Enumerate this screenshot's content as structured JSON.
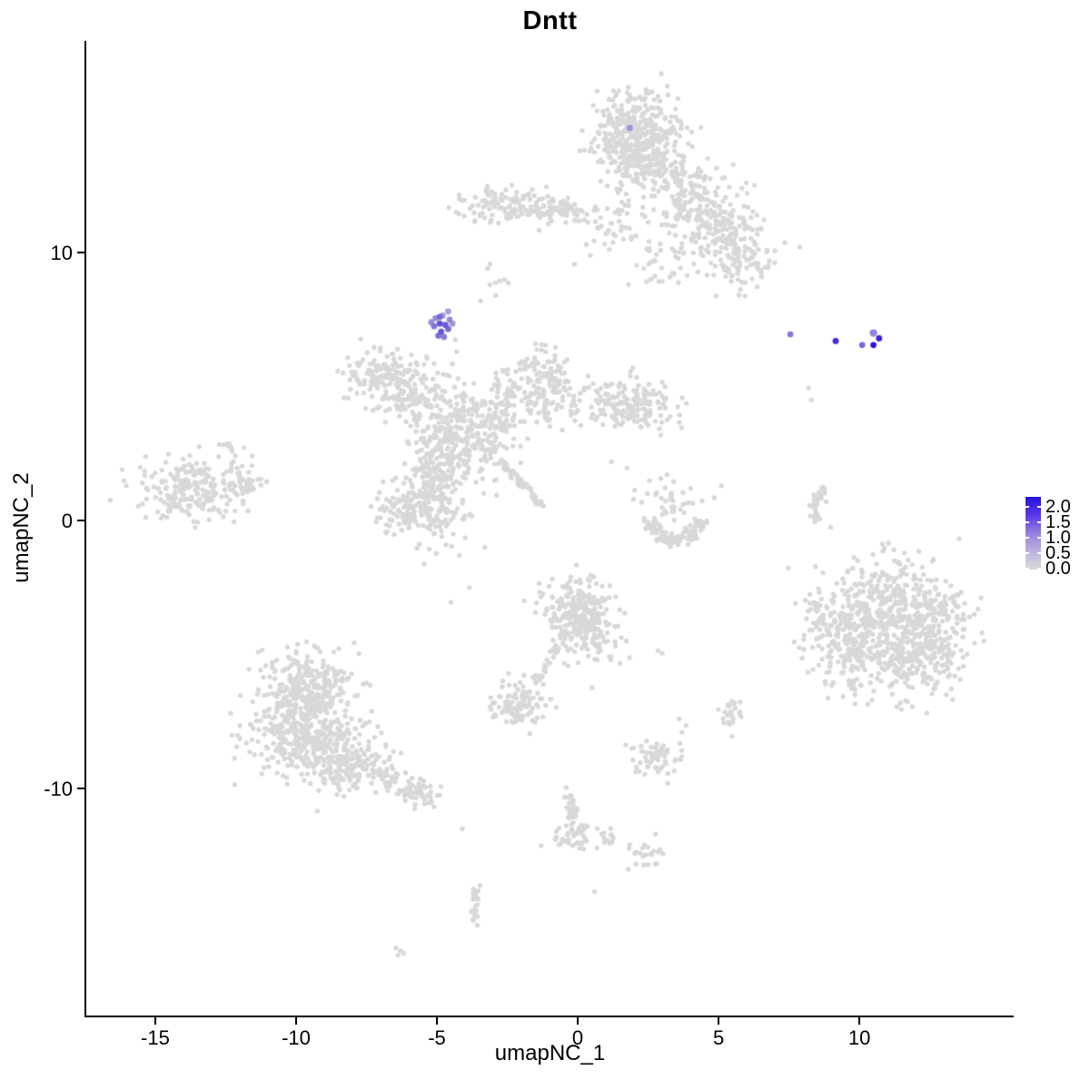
{
  "chart_data": {
    "type": "scatter",
    "title": "Dntt",
    "xlabel": "umapNC_1",
    "ylabel": "umapNC_2",
    "grid": false,
    "xlim": [
      -17.45,
      15.48
    ],
    "ylim": [
      -18.47,
      17.9
    ],
    "x_ticks": {
      "values": [
        -15,
        -10,
        -5,
        0,
        5,
        10
      ],
      "labels": [
        "-15",
        "-10",
        "-5",
        "0",
        "5",
        "10"
      ]
    },
    "y_ticks": {
      "values": [
        10,
        0,
        -10
      ],
      "labels": [
        "10",
        "0",
        "-10"
      ]
    },
    "point_color_grey": "#d8d8d8",
    "point_radius": 2.7,
    "expression_point_radius": 3.4,
    "rng_seed": 42,
    "color_scale": {
      "low_value": 0.0,
      "high_value": 2.0,
      "low_color": "#d3d3d3",
      "high_color": "#2a14dd",
      "legend_labels_top_to_bottom": [
        "2.0",
        "1.5",
        "1.0",
        "0.5",
        "0.0"
      ],
      "gradient_stops_bottom_to_top": [
        "#d9d9d9",
        "#bdb3de",
        "#9480de",
        "#5b38e6",
        "#2411e0"
      ]
    },
    "background_clusters": [
      {
        "type": "gauss",
        "cx": 2.0,
        "cy": 14.6,
        "sx": 0.85,
        "sy": 0.72,
        "n": 300
      },
      {
        "type": "gauss",
        "cx": 2.35,
        "cy": 13.3,
        "sx": 0.72,
        "sy": 0.55,
        "n": 170
      },
      {
        "type": "gauss",
        "cx": 3.9,
        "cy": 12.2,
        "sx": 0.6,
        "sy": 0.65,
        "n": 110
      },
      {
        "type": "gauss",
        "cx": 5.0,
        "cy": 10.9,
        "sx": 0.85,
        "sy": 0.8,
        "n": 170
      },
      {
        "type": "gauss",
        "cx": 5.9,
        "cy": 9.6,
        "sx": 0.55,
        "sy": 0.5,
        "n": 70
      },
      {
        "type": "gauss",
        "cx": -2.3,
        "cy": 11.75,
        "sx": 0.95,
        "sy": 0.33,
        "n": 130
      },
      {
        "type": "gauss",
        "cx": -0.55,
        "cy": 11.55,
        "sx": 0.85,
        "sy": 0.28,
        "n": 55
      },
      {
        "type": "gauss",
        "cx": 1.3,
        "cy": 11.0,
        "sx": 0.9,
        "sy": 0.6,
        "n": 45
      },
      {
        "type": "gauss",
        "cx": 2.9,
        "cy": 9.8,
        "sx": 0.6,
        "sy": 0.55,
        "n": 30
      },
      {
        "type": "gauss",
        "cx": -2.9,
        "cy": 8.7,
        "sx": 0.2,
        "sy": 0.35,
        "n": 7
      },
      {
        "type": "gauss",
        "cx": -6.85,
        "cy": 5.35,
        "sx": 0.75,
        "sy": 0.5,
        "n": 150
      },
      {
        "type": "gauss",
        "cx": -5.65,
        "cy": 4.6,
        "sx": 0.6,
        "sy": 0.42,
        "n": 90
      },
      {
        "type": "gauss",
        "cx": -1.25,
        "cy": 5.6,
        "sx": 0.5,
        "sy": 0.5,
        "n": 85
      },
      {
        "type": "gauss",
        "cx": -1.0,
        "cy": 4.45,
        "sx": 0.5,
        "sy": 0.45,
        "n": 75
      },
      {
        "type": "gauss",
        "cx": -2.5,
        "cy": 4.9,
        "sx": 0.42,
        "sy": 0.5,
        "n": 40
      },
      {
        "type": "gauss",
        "cx": 1.45,
        "cy": 4.45,
        "sx": 0.7,
        "sy": 0.45,
        "n": 110
      },
      {
        "type": "gauss",
        "cx": 2.55,
        "cy": 4.2,
        "sx": 0.5,
        "sy": 0.4,
        "n": 65
      },
      {
        "type": "gauss",
        "cx": -4.3,
        "cy": 3.1,
        "sx": 0.8,
        "sy": 0.7,
        "n": 260
      },
      {
        "type": "gauss",
        "cx": -3.0,
        "cy": 3.7,
        "sx": 0.5,
        "sy": 0.5,
        "n": 70
      },
      {
        "type": "gauss",
        "cx": -4.85,
        "cy": 1.8,
        "sx": 0.45,
        "sy": 0.45,
        "n": 70
      },
      {
        "type": "gauss",
        "cx": -5.6,
        "cy": 0.55,
        "sx": 0.8,
        "sy": 0.68,
        "n": 230
      },
      {
        "type": "line",
        "x1": -2.7,
        "y1": 2.2,
        "x2": -1.25,
        "y2": 0.55,
        "w": 0.07,
        "n": 55
      },
      {
        "type": "gauss",
        "cx": -13.75,
        "cy": 1.1,
        "sx": 0.92,
        "sy": 0.55,
        "n": 210
      },
      {
        "type": "line",
        "x1": -12.7,
        "y1": 1.25,
        "x2": -11.3,
        "y2": 1.4,
        "w": 0.22,
        "n": 45
      },
      {
        "type": "gauss",
        "cx": -12.3,
        "cy": 2.45,
        "sx": 0.3,
        "sy": 0.28,
        "n": 14
      },
      {
        "type": "arc",
        "cx": 3.45,
        "cy": 0.2,
        "r": 0.95,
        "a1": 190,
        "a2": 350,
        "w": 0.16,
        "n": 85
      },
      {
        "type": "gauss",
        "cx": 3.1,
        "cy": 0.75,
        "sx": 0.55,
        "sy": 0.5,
        "n": 42
      },
      {
        "type": "arc",
        "cx": 9.15,
        "cy": 0.45,
        "r": 0.78,
        "a1": 115,
        "a2": 222,
        "w": 0.07,
        "n": 36
      },
      {
        "type": "gauss",
        "cx": 10.95,
        "cy": -3.1,
        "sx": 1.05,
        "sy": 0.85,
        "n": 320
      },
      {
        "type": "gauss",
        "cx": 11.9,
        "cy": -4.9,
        "sx": 1.05,
        "sy": 0.85,
        "n": 320
      },
      {
        "type": "gauss",
        "cx": 9.7,
        "cy": -4.7,
        "sx": 0.7,
        "sy": 0.8,
        "n": 150
      },
      {
        "type": "gauss",
        "cx": 8.6,
        "cy": -3.6,
        "sx": 0.4,
        "sy": 0.55,
        "n": 45
      },
      {
        "type": "gauss",
        "cx": 12.9,
        "cy": -3.4,
        "sx": 0.5,
        "sy": 0.5,
        "n": 60
      },
      {
        "type": "gauss",
        "cx": 0.0,
        "cy": -3.3,
        "sx": 0.62,
        "sy": 0.6,
        "n": 200
      },
      {
        "type": "gauss",
        "cx": 0.45,
        "cy": -4.4,
        "sx": 0.5,
        "sy": 0.5,
        "n": 90
      },
      {
        "type": "line",
        "x1": -0.75,
        "y1": -4.6,
        "x2": -1.4,
        "y2": -6.0,
        "w": 0.09,
        "n": 26
      },
      {
        "type": "gauss",
        "cx": -2.05,
        "cy": -6.8,
        "sx": 0.52,
        "sy": 0.4,
        "n": 105
      },
      {
        "type": "gauss",
        "cx": -9.4,
        "cy": -6.3,
        "sx": 0.8,
        "sy": 0.7,
        "n": 260
      },
      {
        "type": "gauss",
        "cx": -9.8,
        "cy": -7.9,
        "sx": 1.0,
        "sy": 0.75,
        "n": 320
      },
      {
        "type": "gauss",
        "cx": -8.3,
        "cy": -8.9,
        "sx": 0.8,
        "sy": 0.6,
        "n": 210
      },
      {
        "type": "line",
        "x1": -7.0,
        "y1": -9.5,
        "x2": -4.9,
        "y2": -10.5,
        "w": 0.28,
        "n": 80
      },
      {
        "type": "gauss",
        "cx": 2.7,
        "cy": -8.9,
        "sx": 0.4,
        "sy": 0.45,
        "n": 60
      },
      {
        "type": "gauss",
        "cx": 5.45,
        "cy": -7.2,
        "sx": 0.28,
        "sy": 0.3,
        "n": 26
      },
      {
        "type": "gauss",
        "cx": 2.5,
        "cy": -12.4,
        "sx": 0.32,
        "sy": 0.26,
        "n": 24
      },
      {
        "type": "line",
        "x1": -0.35,
        "y1": -10.05,
        "x2": -0.15,
        "y2": -11.3,
        "w": 0.09,
        "n": 26
      },
      {
        "type": "gauss",
        "cx": -0.2,
        "cy": -11.75,
        "sx": 0.3,
        "sy": 0.26,
        "n": 40
      },
      {
        "type": "line",
        "x1": -3.6,
        "y1": -13.5,
        "x2": -3.72,
        "y2": -15.05,
        "w": 0.1,
        "n": 24
      },
      {
        "type": "gauss",
        "cx": 1.05,
        "cy": -11.75,
        "sx": 0.3,
        "sy": 0.2,
        "n": 12
      }
    ],
    "sparse_points": [
      [
        -4.35,
        6.75
      ],
      [
        -4.3,
        6.3
      ],
      [
        -4.45,
        5.85
      ],
      [
        -4.25,
        5.3
      ],
      [
        -4.05,
        4.75
      ],
      [
        -3.2,
        9.4
      ],
      [
        -3.45,
        8.2
      ],
      [
        8.2,
        4.95
      ],
      [
        8.3,
        4.5
      ],
      [
        8.82,
        0.7
      ],
      [
        8.98,
        -0.25
      ],
      [
        -4.2,
        -1.3
      ],
      [
        -3.85,
        -2.5
      ],
      [
        -4.5,
        -3.05
      ],
      [
        -3.3,
        -1.0
      ],
      [
        3.6,
        -7.4
      ],
      [
        3.85,
        -7.65
      ],
      [
        3.7,
        -7.9
      ],
      [
        2.85,
        -4.85
      ],
      [
        3.0,
        -4.95
      ],
      [
        0.7,
        -11.5
      ],
      [
        0.85,
        -11.7
      ],
      [
        0.6,
        -13.85
      ],
      [
        -4.1,
        -11.5
      ],
      [
        -6.45,
        -15.95
      ],
      [
        -6.3,
        -16.05
      ],
      [
        -6.18,
        -16.15
      ],
      [
        -6.38,
        -16.22
      ],
      [
        1.2,
        2.2
      ],
      [
        1.75,
        1.95
      ],
      [
        5.1,
        1.3
      ],
      [
        4.85,
        0.85
      ],
      [
        -1.7,
        -7.95
      ],
      [
        0.3,
        10.3
      ],
      [
        1.9,
        10.5
      ],
      [
        2.6,
        9.0
      ]
    ],
    "expressing_points": [
      {
        "x": -5.05,
        "y": 7.55,
        "value": 0.75
      },
      {
        "x": -4.8,
        "y": 7.65,
        "value": 0.6
      },
      {
        "x": -4.6,
        "y": 7.8,
        "value": 0.55
      },
      {
        "x": -5.1,
        "y": 7.25,
        "value": 1.0
      },
      {
        "x": -4.9,
        "y": 7.35,
        "value": 1.35
      },
      {
        "x": -4.7,
        "y": 7.3,
        "value": 1.25
      },
      {
        "x": -4.85,
        "y": 7.05,
        "value": 1.3
      },
      {
        "x": -4.6,
        "y": 7.15,
        "value": 1.1
      },
      {
        "x": -5.2,
        "y": 7.4,
        "value": 0.7
      },
      {
        "x": -4.95,
        "y": 6.9,
        "value": 1.05
      },
      {
        "x": -4.45,
        "y": 7.35,
        "value": 0.6
      },
      {
        "x": -4.75,
        "y": 6.85,
        "value": 0.9
      },
      {
        "x": -4.55,
        "y": 7.5,
        "value": 0.8
      },
      {
        "x": -4.9,
        "y": 7.6,
        "value": 1.1
      },
      {
        "x": 1.85,
        "y": 14.65,
        "value": 0.65
      },
      {
        "x": 7.55,
        "y": 6.95,
        "value": 0.95
      },
      {
        "x": 9.16,
        "y": 6.7,
        "value": 1.75
      },
      {
        "x": 10.1,
        "y": 6.55,
        "value": 1.1
      },
      {
        "x": 10.5,
        "y": 7.0,
        "value": 0.8,
        "r": 4.2
      },
      {
        "x": 10.5,
        "y": 6.55,
        "value": 2.0
      },
      {
        "x": 10.7,
        "y": 6.8,
        "value": 1.85
      }
    ]
  }
}
